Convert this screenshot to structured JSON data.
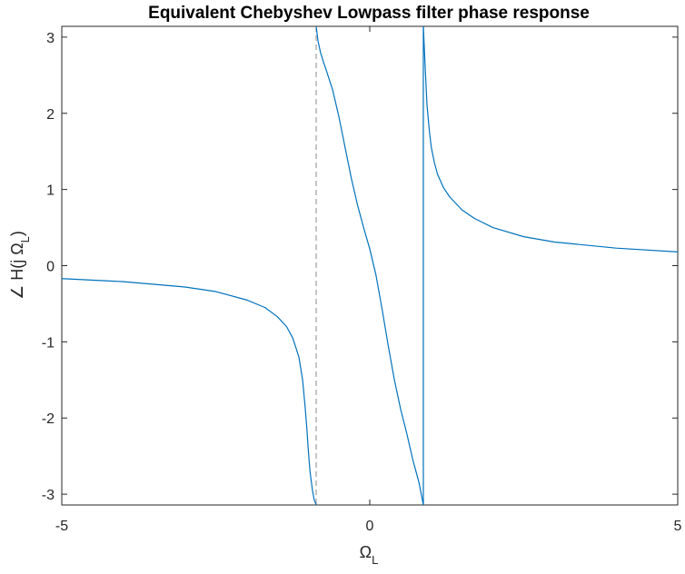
{
  "chart_data": {
    "type": "line",
    "title": "Equivalent Chebyshev Lowpass filter phase response",
    "xlabel": {
      "main": "Ω",
      "sub": "L"
    },
    "ylabel": {
      "prefix": "∠ H(j Ω",
      "sub": "L",
      "suffix": ")"
    },
    "xlim": [
      -5,
      5
    ],
    "ylim": [
      -3.14159,
      3.14159
    ],
    "xticks": [
      -5,
      0,
      5
    ],
    "xtick_labels": [
      "-5",
      "0",
      "5"
    ],
    "yticks": [
      -3,
      -2,
      -1,
      0,
      1,
      2,
      3
    ],
    "ytick_labels": [
      "-3",
      "-2",
      "-1",
      "0",
      "1",
      "2",
      "3"
    ],
    "grid": false,
    "line_color": "#0072BD",
    "asymptote_color": "#8c8c8c",
    "asymptote_style": "dashed",
    "asymptote_x": -0.87,
    "series": [
      {
        "segment": "left-branch",
        "x": [
          -5,
          -4,
          -3,
          -2.5,
          -2,
          -1.7,
          -1.5,
          -1.35,
          -1.25,
          -1.15,
          -1.09,
          -1.05,
          -1.02,
          -1.0,
          -0.97,
          -0.93,
          -0.9,
          -0.87
        ],
        "y": [
          -0.17,
          -0.21,
          -0.28,
          -0.34,
          -0.45,
          -0.55,
          -0.67,
          -0.8,
          -0.95,
          -1.2,
          -1.5,
          -1.85,
          -2.15,
          -2.4,
          -2.7,
          -2.95,
          -3.08,
          -3.14
        ]
      },
      {
        "segment": "middle-branch",
        "x": [
          -0.87,
          -0.84,
          -0.8,
          -0.75,
          -0.7,
          -0.6,
          -0.5,
          -0.4,
          -0.3,
          -0.2,
          -0.1,
          0,
          0.1,
          0.2,
          0.3,
          0.4,
          0.5,
          0.6,
          0.7,
          0.8,
          0.87
        ],
        "y": [
          3.14,
          2.95,
          2.8,
          2.67,
          2.55,
          2.3,
          1.95,
          1.55,
          1.15,
          0.8,
          0.5,
          0.22,
          -0.12,
          -0.57,
          -1.05,
          -1.5,
          -1.88,
          -2.2,
          -2.55,
          -2.85,
          -3.14
        ]
      },
      {
        "segment": "jump",
        "x": [
          0.87,
          0.87
        ],
        "y": [
          -3.14,
          3.14
        ]
      },
      {
        "segment": "right-branch",
        "x": [
          0.87,
          0.9,
          0.93,
          0.97,
          1.0,
          1.05,
          1.1,
          1.2,
          1.3,
          1.5,
          1.7,
          2.0,
          2.5,
          3.0,
          4.0,
          5.0
        ],
        "y": [
          3.14,
          2.6,
          2.1,
          1.75,
          1.55,
          1.35,
          1.2,
          1.02,
          0.9,
          0.73,
          0.62,
          0.5,
          0.38,
          0.31,
          0.23,
          0.18
        ]
      }
    ]
  }
}
